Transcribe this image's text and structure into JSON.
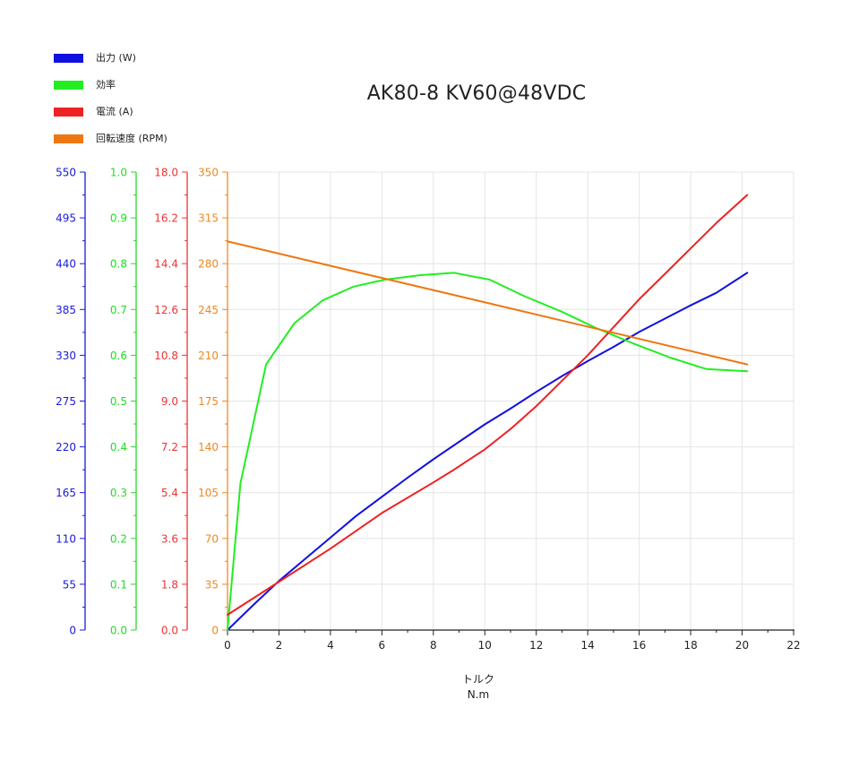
{
  "chart_data": {
    "type": "line",
    "title": "AK80-8 KV60@48VDC",
    "xlabel": "トルク",
    "xunit": "N.m",
    "xlim": [
      0,
      22
    ],
    "xticks": [
      0,
      2,
      4,
      6,
      8,
      10,
      12,
      14,
      16,
      18,
      20,
      22
    ],
    "legend_position": "top-left",
    "grid": true,
    "axes": [
      {
        "id": "power",
        "color": "#1a1adc",
        "ylim": [
          0,
          550
        ],
        "ticks": [
          "0",
          "55",
          "110",
          "165",
          "220",
          "275",
          "330",
          "385",
          "440",
          "495",
          "550"
        ]
      },
      {
        "id": "efficiency",
        "color": "#22dd22",
        "ylim": [
          0,
          1.0
        ],
        "ticks": [
          "0.0",
          "0.1",
          "0.2",
          "0.3",
          "0.4",
          "0.5",
          "0.6",
          "0.7",
          "0.8",
          "0.9",
          "1.0"
        ]
      },
      {
        "id": "current",
        "color": "#ee3333",
        "ylim": [
          0,
          18
        ],
        "ticks": [
          "0.0",
          "1.8",
          "3.6",
          "5.4",
          "7.2",
          "9.0",
          "10.8",
          "12.6",
          "14.4",
          "16.2",
          "18.0"
        ]
      },
      {
        "id": "speed",
        "color": "#ee8822",
        "ylim": [
          0,
          350
        ],
        "ticks": [
          "0",
          "35",
          "70",
          "105",
          "140",
          "175",
          "210",
          "245",
          "280",
          "315",
          "350"
        ]
      }
    ],
    "series": [
      {
        "name": "出力 (W)",
        "axis": "power",
        "color": "#1010e0",
        "x": [
          0,
          1,
          2,
          3,
          4,
          5,
          6,
          7,
          8,
          9,
          10,
          11,
          12,
          13,
          14,
          15,
          16,
          17,
          18,
          19,
          20.2
        ],
        "y": [
          0,
          30,
          59,
          85,
          111,
          137,
          160,
          183,
          205,
          226,
          247,
          266,
          286,
          305,
          323,
          340,
          358,
          374,
          390,
          405,
          429
        ]
      },
      {
        "name": "効率",
        "axis": "efficiency",
        "color": "#22ee22",
        "x": [
          0,
          0.5,
          1.5,
          2.6,
          3.7,
          4.9,
          6.1,
          7.5,
          8.8,
          10.2,
          11.5,
          13.0,
          14.3,
          15.8,
          17.2,
          18.6,
          20.2
        ],
        "y": [
          0.0,
          0.32,
          0.58,
          0.67,
          0.72,
          0.75,
          0.765,
          0.775,
          0.78,
          0.765,
          0.73,
          0.695,
          0.66,
          0.625,
          0.595,
          0.57,
          0.565
        ]
      },
      {
        "name": "電流 (A)",
        "axis": "current",
        "color": "#ee2222",
        "x": [
          0,
          2,
          4,
          6,
          8,
          8.8,
          10,
          11,
          12,
          13,
          14,
          15,
          16,
          17,
          18,
          19,
          20.2
        ],
        "y": [
          0.6,
          1.9,
          3.2,
          4.6,
          5.8,
          6.3,
          7.1,
          7.9,
          8.8,
          9.8,
          10.8,
          11.9,
          13.0,
          14.0,
          15.0,
          16.0,
          17.1
        ]
      },
      {
        "name": "回転速度 (RPM)",
        "axis": "speed",
        "color": "#ee7711",
        "x": [
          0,
          20.2
        ],
        "y": [
          297,
          203
        ]
      }
    ]
  }
}
